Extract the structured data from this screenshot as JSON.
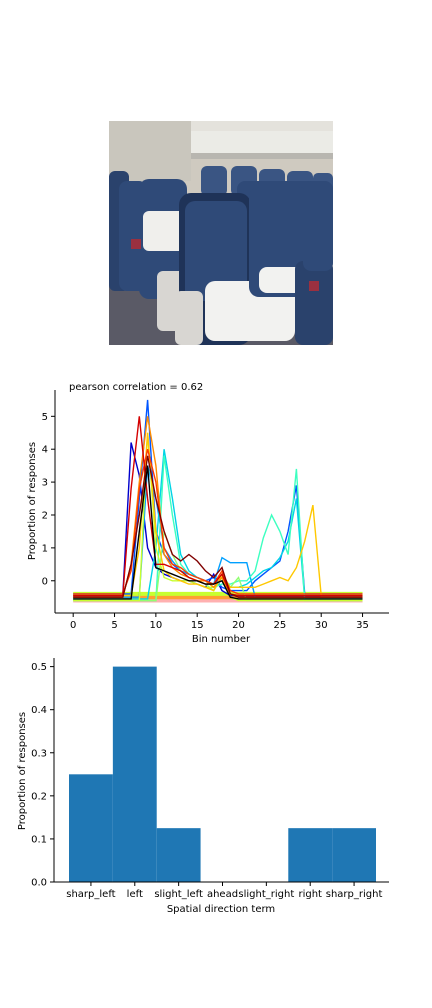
{
  "photo": {
    "subject": "airplane-cabin-seats",
    "colors": {
      "cabin_wall": "#cfcac0",
      "ceiling": "#e4e2dc",
      "seat": "#2f4a78",
      "seat_dark": "#1f3358",
      "pillow": "#f2f2f0",
      "floor": "#5a5a66",
      "armrest": "#d8d6d2"
    }
  },
  "chart_data": [
    {
      "type": "line",
      "title": "pearson correlation = 0.62",
      "xlabel": "Bin number",
      "ylabel": "Proportion of responses",
      "xlim": [
        -2.2,
        38.2
      ],
      "ylim": [
        -0.98,
        5.8
      ],
      "xticks": [
        0,
        5,
        10,
        15,
        20,
        25,
        30,
        35
      ],
      "yticks": [
        0,
        1,
        2,
        3,
        4,
        5
      ],
      "x": [
        0,
        1,
        2,
        3,
        4,
        5,
        6,
        7,
        8,
        9,
        10,
        11,
        12,
        13,
        14,
        15,
        16,
        17,
        18,
        19,
        20,
        21,
        22,
        23,
        24,
        25,
        26,
        27,
        28,
        29,
        30,
        31,
        32,
        33,
        34,
        35
      ],
      "colors": [
        "#0000cc",
        "#0055ff",
        "#00a0ff",
        "#00d4e6",
        "#3dffc0",
        "#90ff70",
        "#c8ff30",
        "#ffc800",
        "#ff8c00",
        "#ff3c00",
        "#d40000",
        "#800000",
        "#000000"
      ],
      "series": [
        {
          "values": [
            -0.45,
            -0.45,
            -0.45,
            -0.45,
            -0.45,
            -0.45,
            -0.45,
            4.2,
            3.2,
            1.0,
            0.4,
            0.2,
            0.1,
            0.0,
            0.0,
            -0.1,
            -0.2,
            0.2,
            -0.3,
            -0.45,
            -0.45,
            -0.45,
            -0.45,
            -0.45,
            -0.45,
            -0.45,
            -0.45,
            -0.45,
            -0.45,
            -0.45,
            -0.45,
            -0.45,
            -0.45,
            -0.45,
            -0.45,
            -0.45
          ]
        },
        {
          "values": [
            -0.4,
            -0.4,
            -0.4,
            -0.4,
            -0.4,
            -0.4,
            -0.4,
            -0.4,
            2.5,
            5.5,
            1.5,
            0.8,
            0.5,
            0.3,
            0.2,
            0.1,
            0.0,
            0.1,
            -0.2,
            -0.3,
            -0.3,
            -0.3,
            0.0,
            0.2,
            0.4,
            0.6,
            1.5,
            2.9,
            -0.4,
            -0.4,
            -0.4,
            -0.4,
            -0.4,
            -0.4,
            -0.4,
            -0.4
          ]
        },
        {
          "values": [
            -0.5,
            -0.5,
            -0.5,
            -0.5,
            -0.5,
            -0.5,
            -0.5,
            -0.5,
            -0.5,
            3.5,
            2.5,
            1.0,
            0.6,
            0.3,
            0.2,
            0.1,
            0.0,
            -0.1,
            0.7,
            0.55,
            0.55,
            0.55,
            -0.5,
            -0.5,
            -0.5,
            -0.5,
            -0.5,
            -0.5,
            -0.5,
            -0.5,
            -0.5,
            -0.5,
            -0.5,
            -0.5,
            -0.5,
            -0.5
          ]
        },
        {
          "values": [
            -0.55,
            -0.55,
            -0.55,
            -0.55,
            -0.55,
            -0.55,
            -0.55,
            -0.55,
            -0.55,
            -0.55,
            1.0,
            4.0,
            2.5,
            0.8,
            0.3,
            0.1,
            0.0,
            -0.1,
            0.2,
            -0.2,
            -0.2,
            -0.1,
            0.1,
            0.3,
            0.4,
            0.7,
            1.2,
            2.5,
            -0.55,
            -0.55,
            -0.55,
            -0.55,
            -0.55,
            -0.55,
            -0.55,
            -0.55
          ]
        },
        {
          "values": [
            -0.6,
            -0.6,
            -0.6,
            -0.6,
            -0.6,
            -0.6,
            -0.6,
            -0.6,
            -0.6,
            -0.6,
            -0.6,
            3.8,
            2.0,
            0.5,
            0.2,
            0.1,
            0.0,
            -0.2,
            -0.1,
            -0.1,
            0.0,
            0.0,
            0.3,
            1.3,
            2.0,
            1.5,
            0.8,
            3.4,
            -0.6,
            -0.6,
            -0.6,
            -0.6,
            -0.6,
            -0.6,
            -0.6,
            -0.6
          ]
        },
        {
          "values": [
            -0.6,
            -0.6,
            -0.6,
            -0.6,
            -0.6,
            -0.6,
            -0.6,
            -0.6,
            -0.6,
            -0.6,
            -0.6,
            1.5,
            0.8,
            0.3,
            0.1,
            0.0,
            -0.1,
            -0.3,
            0.1,
            -0.2,
            0.1,
            -0.6,
            -0.6,
            -0.6,
            -0.6,
            -0.6,
            -0.6,
            -0.6,
            -0.6,
            -0.6,
            -0.6,
            -0.6,
            -0.6,
            -0.6,
            -0.6,
            -0.6
          ]
        },
        {
          "values": [
            -0.6,
            -0.6,
            -0.6,
            -0.6,
            -0.6,
            -0.6,
            -0.6,
            -0.6,
            -0.6,
            4.5,
            1.0,
            0.1,
            0.0,
            0.0,
            0.0,
            -0.1,
            -0.2,
            -0.2,
            0.1,
            -0.5,
            -0.6,
            -0.6,
            -0.6,
            -0.6,
            -0.6,
            -0.6,
            -0.6,
            -0.6,
            -0.6,
            -0.6,
            -0.6,
            -0.6,
            -0.6,
            -0.6,
            -0.6,
            -0.6
          ]
        },
        {
          "values": [
            -0.45,
            -0.45,
            -0.45,
            -0.45,
            -0.45,
            -0.45,
            -0.45,
            -0.45,
            1.0,
            4.5,
            1.5,
            0.3,
            0.1,
            0.0,
            -0.1,
            -0.1,
            -0.2,
            -0.3,
            0.2,
            -0.2,
            -0.2,
            -0.2,
            -0.2,
            -0.1,
            0.0,
            0.1,
            0.0,
            0.4,
            1.2,
            2.3,
            -0.45,
            -0.45,
            -0.45,
            -0.45,
            -0.45,
            -0.45
          ]
        },
        {
          "values": [
            -0.5,
            -0.5,
            -0.5,
            -0.5,
            -0.5,
            -0.5,
            -0.5,
            0.5,
            3.0,
            5.0,
            3.5,
            0.8,
            0.4,
            0.2,
            0.1,
            0.0,
            0.0,
            -0.2,
            0.1,
            -0.4,
            -0.5,
            -0.5,
            -0.5,
            -0.5,
            -0.5,
            -0.5,
            -0.5,
            -0.5,
            -0.5,
            -0.5,
            -0.5,
            -0.5,
            -0.5,
            -0.5,
            -0.5,
            -0.5
          ]
        },
        {
          "values": [
            -0.4,
            -0.4,
            -0.4,
            -0.4,
            -0.4,
            -0.4,
            -0.4,
            0.3,
            2.8,
            4.0,
            3.0,
            1.0,
            0.5,
            0.4,
            0.2,
            0.1,
            0.0,
            -0.1,
            0.3,
            -0.3,
            -0.4,
            -0.4,
            -0.4,
            -0.4,
            -0.4,
            -0.4,
            -0.4,
            -0.4,
            -0.4,
            -0.4,
            -0.4,
            -0.4,
            -0.4,
            -0.4,
            -0.4,
            -0.4
          ]
        },
        {
          "values": [
            -0.45,
            -0.45,
            -0.45,
            -0.45,
            -0.45,
            -0.45,
            -0.45,
            2.8,
            5.0,
            2.5,
            0.5,
            0.5,
            0.4,
            0.3,
            0.1,
            0.0,
            -0.1,
            -0.1,
            0.2,
            -0.4,
            -0.45,
            -0.45,
            -0.45,
            -0.45,
            -0.45,
            -0.45,
            -0.45,
            -0.45,
            -0.45,
            -0.45,
            -0.45,
            -0.45,
            -0.45,
            -0.45,
            -0.45,
            -0.45
          ]
        },
        {
          "values": [
            -0.5,
            -0.5,
            -0.5,
            -0.5,
            -0.5,
            -0.5,
            -0.5,
            0.5,
            2.0,
            3.8,
            2.5,
            1.5,
            0.8,
            0.6,
            0.8,
            0.6,
            0.3,
            0.1,
            0.4,
            -0.4,
            -0.5,
            -0.5,
            -0.5,
            -0.5,
            -0.5,
            -0.5,
            -0.5,
            -0.5,
            -0.5,
            -0.5,
            -0.5,
            -0.5,
            -0.5,
            -0.5,
            -0.5,
            -0.5
          ]
        },
        {
          "values": [
            -0.55,
            -0.55,
            -0.55,
            -0.55,
            -0.55,
            -0.55,
            -0.55,
            -0.55,
            1.5,
            3.5,
            0.4,
            0.3,
            0.2,
            0.1,
            0.0,
            0.0,
            -0.1,
            -0.1,
            0.0,
            -0.5,
            -0.55,
            -0.55,
            -0.55,
            -0.55,
            -0.55,
            -0.55,
            -0.55,
            -0.55,
            -0.55,
            -0.55,
            -0.55,
            -0.55,
            -0.55,
            -0.55,
            -0.55,
            -0.55
          ]
        }
      ],
      "band": {
        "y_low": -0.65,
        "y_high": -0.35,
        "colors": [
          "#ffb0b0",
          "#ffa030",
          "#c8ff30"
        ]
      }
    },
    {
      "type": "bar",
      "xlabel": "Spatial direction term",
      "ylabel": "Proportion of responses",
      "categories": [
        "sharp_left",
        "left",
        "slight_left",
        "ahead",
        "slight_right",
        "right",
        "sharp_right"
      ],
      "values": [
        0.25,
        0.5,
        0.125,
        0.0,
        0.0,
        0.125,
        0.125
      ],
      "ylim": [
        0,
        0.52
      ],
      "yticks": [
        0.0,
        0.1,
        0.2,
        0.3,
        0.4,
        0.5
      ],
      "color": "#1f77b4"
    }
  ]
}
